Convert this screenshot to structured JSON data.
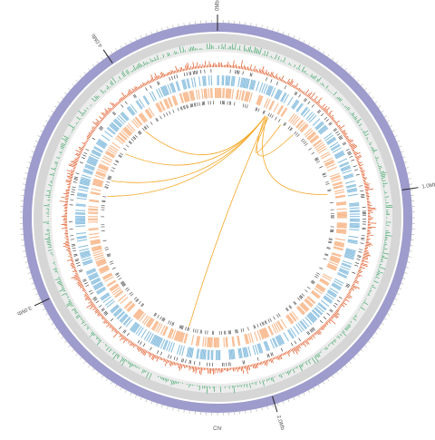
{
  "chart_data": {
    "type": "circos",
    "xlim": [
      0,
      4.42
    ],
    "xticks": [
      {
        "value": 0,
        "label": "0Mb"
      },
      {
        "value": 1,
        "label": "1.0Mb"
      },
      {
        "value": 2,
        "label": "2.0Mb"
      },
      {
        "value": 3,
        "label": "3.0Mb"
      },
      {
        "value": 4,
        "label": "4.0Mb"
      }
    ],
    "axis_label": "Chr",
    "ring_color": "#9e9ccc",
    "link_color": "#f5a623",
    "links": [
      [
        0.31,
        3.45
      ],
      [
        0.31,
        3.55
      ],
      [
        0.31,
        3.74
      ],
      [
        0.31,
        3.93
      ],
      [
        0.32,
        2.39
      ],
      [
        0.32,
        0.96
      ],
      [
        0.31,
        0.52
      ],
      [
        0.33,
        0.42
      ]
    ]
  }
}
